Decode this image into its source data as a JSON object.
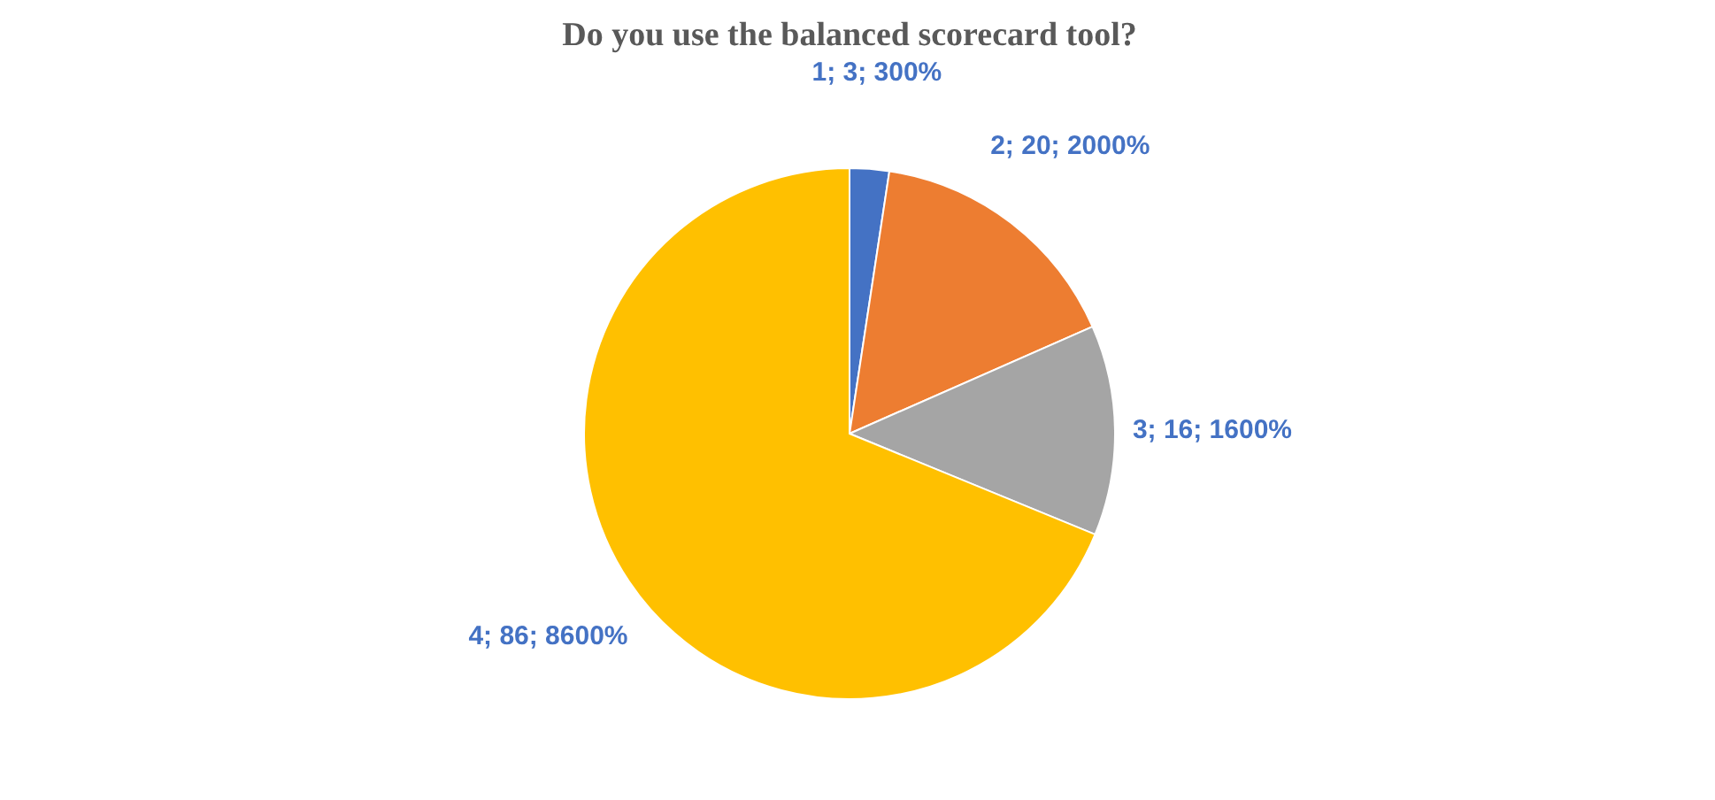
{
  "chart_data": {
    "type": "pie",
    "title": "Do you use the balanced scorecard tool?",
    "categories": [
      null,
      null,
      null,
      null
    ],
    "values": [
      3,
      20,
      16,
      86
    ],
    "colors": [
      "#4472c4",
      "#ed7d31",
      "#a5a5a5",
      "#ffc000"
    ],
    "value_labels": [
      "1; 3; 300%",
      "2; 20; 2000%",
      "3; 16; 1600%",
      "4; 86; 8600%"
    ]
  }
}
